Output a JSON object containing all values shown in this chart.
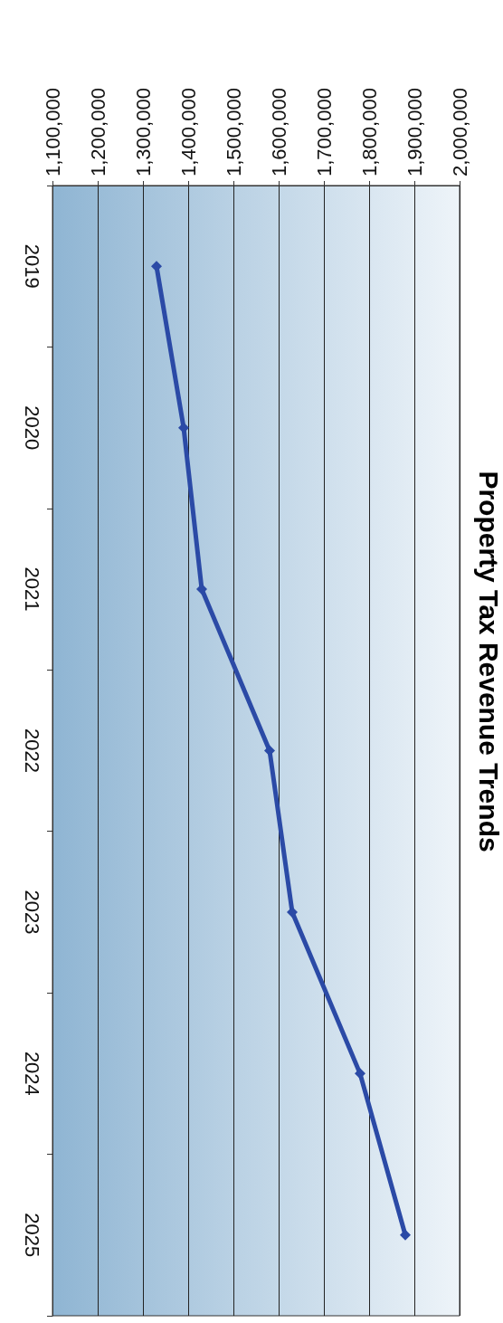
{
  "chart_data": {
    "type": "line",
    "title": "Property Tax Revenue Trends",
    "orientation": "horizontal",
    "categories": [
      "2019",
      "2020",
      "2021",
      "2022",
      "2023",
      "2024",
      "2025"
    ],
    "series": [
      {
        "color": "#2b4aa6",
        "values": [
          1330000,
          1390000,
          1430000,
          1580000,
          1630000,
          1780000,
          1880000
        ]
      }
    ],
    "xlim": [
      1100000,
      2000000
    ],
    "xticks": [
      {
        "value": 1100000,
        "label": "1,100,000"
      },
      {
        "value": 1200000,
        "label": "1,200,000"
      },
      {
        "value": 1300000,
        "label": "1,300,000"
      },
      {
        "value": 1400000,
        "label": "1,400,000"
      },
      {
        "value": 1500000,
        "label": "1,500,000"
      },
      {
        "value": 1600000,
        "label": "1,600,000"
      },
      {
        "value": 1700000,
        "label": "1,700,000"
      },
      {
        "value": 1800000,
        "label": "1,800,000"
      },
      {
        "value": 1900000,
        "label": "1,900,000"
      },
      {
        "value": 2000000,
        "label": "2,000,000"
      }
    ],
    "grid": "x",
    "marker": "diamond",
    "line_style": "solid"
  }
}
